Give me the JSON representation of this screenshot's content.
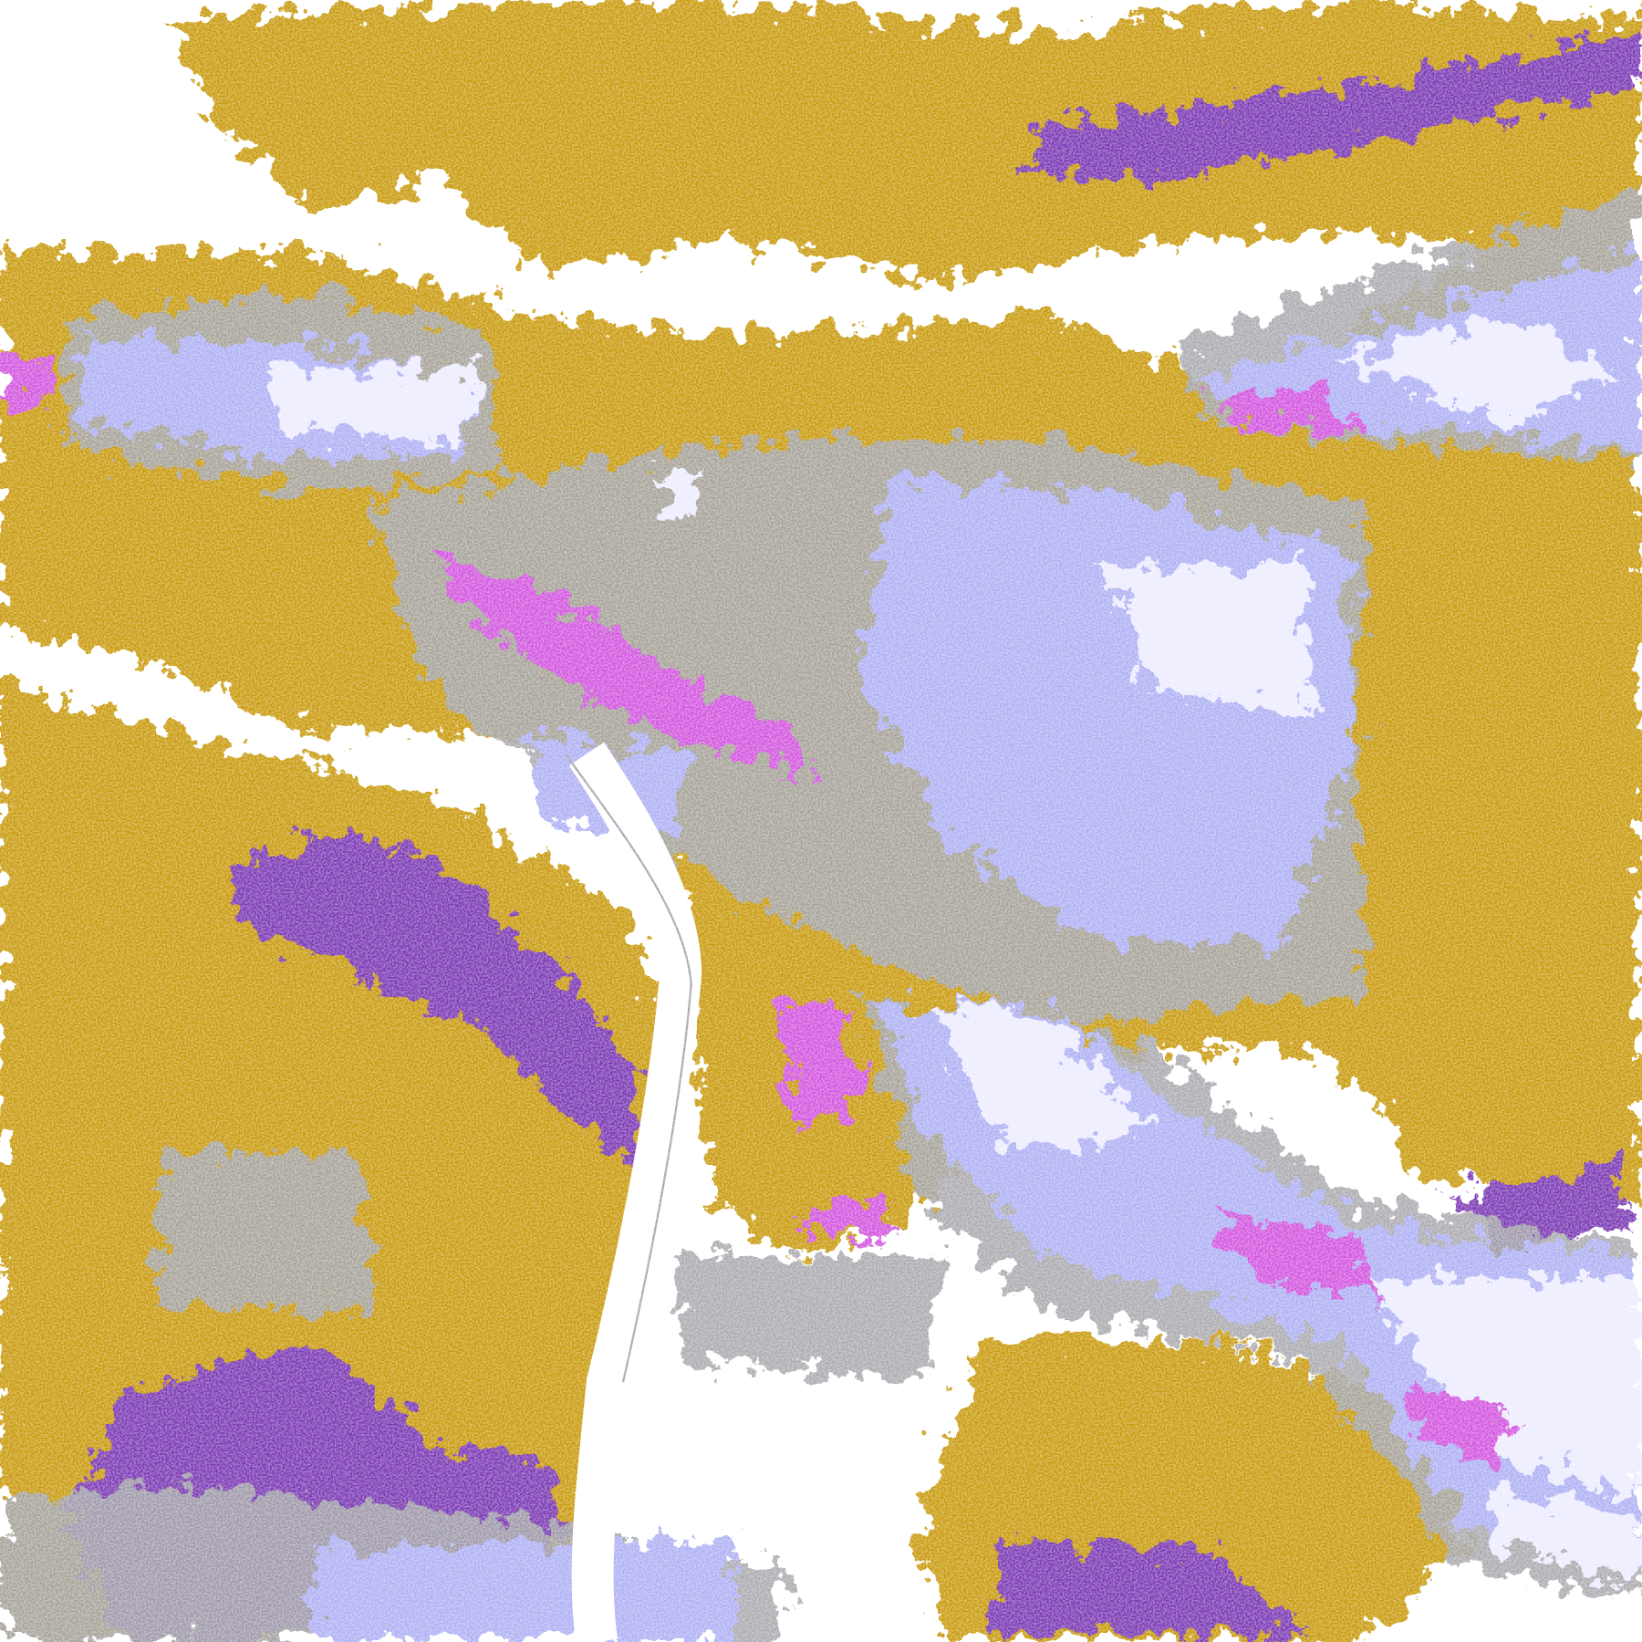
{
  "map": {
    "classes": [
      {
        "key": "background",
        "color": "#ffffff"
      },
      {
        "key": "gold",
        "color": "#c99a0e"
      },
      {
        "key": "purple",
        "color": "#7a38b3"
      },
      {
        "key": "magenta",
        "color": "#d255df"
      },
      {
        "key": "lavender",
        "color": "#aeb0f4"
      },
      {
        "key": "pale-lavender",
        "color": "#ececff"
      },
      {
        "key": "gray",
        "color": "#a3a3a8"
      }
    ]
  }
}
